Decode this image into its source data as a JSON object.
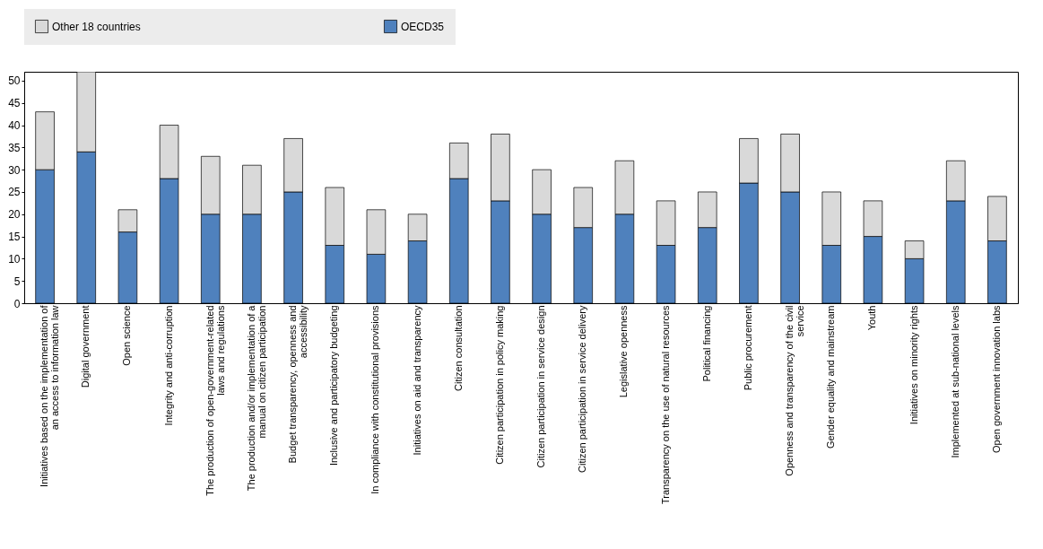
{
  "chart_data": {
    "type": "bar",
    "stacked": true,
    "categories": [
      "Initiatives based on the implementation of an access to information law",
      "Digital government",
      "Open science",
      "Integrity and anti-corruption",
      "The production of open-government-related laws and regulations",
      "The production and/or implementation of a manual on citizen participation",
      "Budget transparency, openness and accessibility",
      "Inclusive and participatory budgeting",
      "In compliance with constitutional provisions",
      "Initiatives on aid and transparency",
      "Citizen consultation",
      "Citizen participation in policy making",
      "Citizen participation in service design",
      "Citizen participation in service delivery",
      "Legislative openness",
      "Transparency on the use of natural resources",
      "Political financing",
      "Public procurement",
      "Openness and transparency of the civil service",
      "Gender equality and mainstream",
      "Youth",
      "Initiatives on minority rights",
      "Implemented at sub-national levels",
      "Open government innovation labs"
    ],
    "series": [
      {
        "name": "OECD35",
        "color": "#4f81bd",
        "values": [
          30,
          34,
          16,
          28,
          20,
          20,
          25,
          13,
          11,
          14,
          28,
          23,
          20,
          17,
          20,
          13,
          17,
          27,
          25,
          13,
          15,
          10,
          23,
          14
        ]
      },
      {
        "name": "Other 18 countries",
        "color": "#d9d9d9",
        "values": [
          13,
          18,
          5,
          12,
          13,
          11,
          12,
          13,
          10,
          6,
          8,
          15,
          10,
          9,
          12,
          10,
          8,
          10,
          13,
          12,
          8,
          4,
          9,
          10
        ]
      }
    ],
    "ylim": [
      0,
      52
    ],
    "yticks": [
      0,
      5,
      10,
      15,
      20,
      25,
      30,
      35,
      40,
      45,
      50
    ],
    "grid": false,
    "legend": "top"
  }
}
